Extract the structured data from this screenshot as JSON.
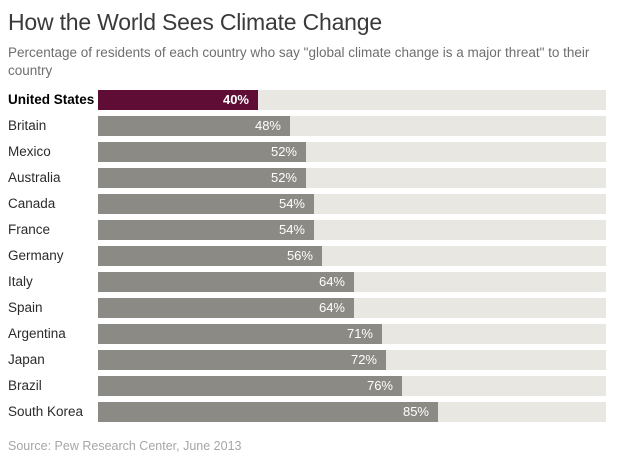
{
  "chart_data": {
    "type": "bar",
    "orientation": "horizontal",
    "title": "How the World Sees Climate Change",
    "subtitle": "Percentage of residents of each country who say \"global climate change is a major threat\" to their country",
    "source": "Source: Pew Research Center, June 2013",
    "categories": [
      "United States",
      "Britain",
      "Mexico",
      "Australia",
      "Canada",
      "France",
      "Germany",
      "Italy",
      "Spain",
      "Argentina",
      "Japan",
      "Brazil",
      "South Korea"
    ],
    "values": [
      40,
      48,
      52,
      52,
      54,
      54,
      56,
      64,
      64,
      71,
      72,
      76,
      85
    ],
    "value_labels": [
      "40%",
      "48%",
      "52%",
      "52%",
      "54%",
      "54%",
      "56%",
      "64%",
      "64%",
      "71%",
      "72%",
      "76%",
      "85%"
    ],
    "unit": "%",
    "highlight_category": "United States",
    "axis_max": 127,
    "grid": false,
    "legend": false,
    "value_labels_inside_bars": true,
    "colors": {
      "highlight_bar": "#5f0d35",
      "bar": "#8c8a84",
      "track": "#e9e7e1",
      "value_label": "#ffffff"
    }
  }
}
